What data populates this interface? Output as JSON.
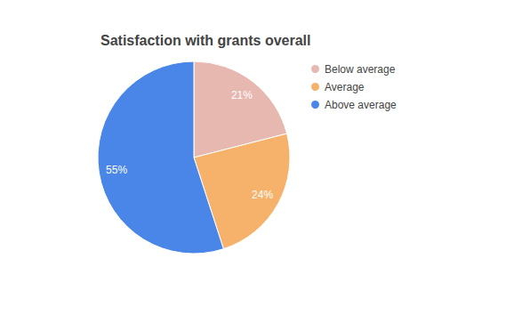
{
  "chart_data": {
    "type": "pie",
    "title": "Satisfaction with grants overall",
    "categories": [
      "Below average",
      "Average",
      "Above average"
    ],
    "values": [
      21,
      24,
      55
    ],
    "value_labels": [
      "21%",
      "24%",
      "55%"
    ],
    "colors": [
      "#e6b8af",
      "#f6b26b",
      "#4a86e8"
    ],
    "data_labels": true,
    "legend": "right"
  }
}
